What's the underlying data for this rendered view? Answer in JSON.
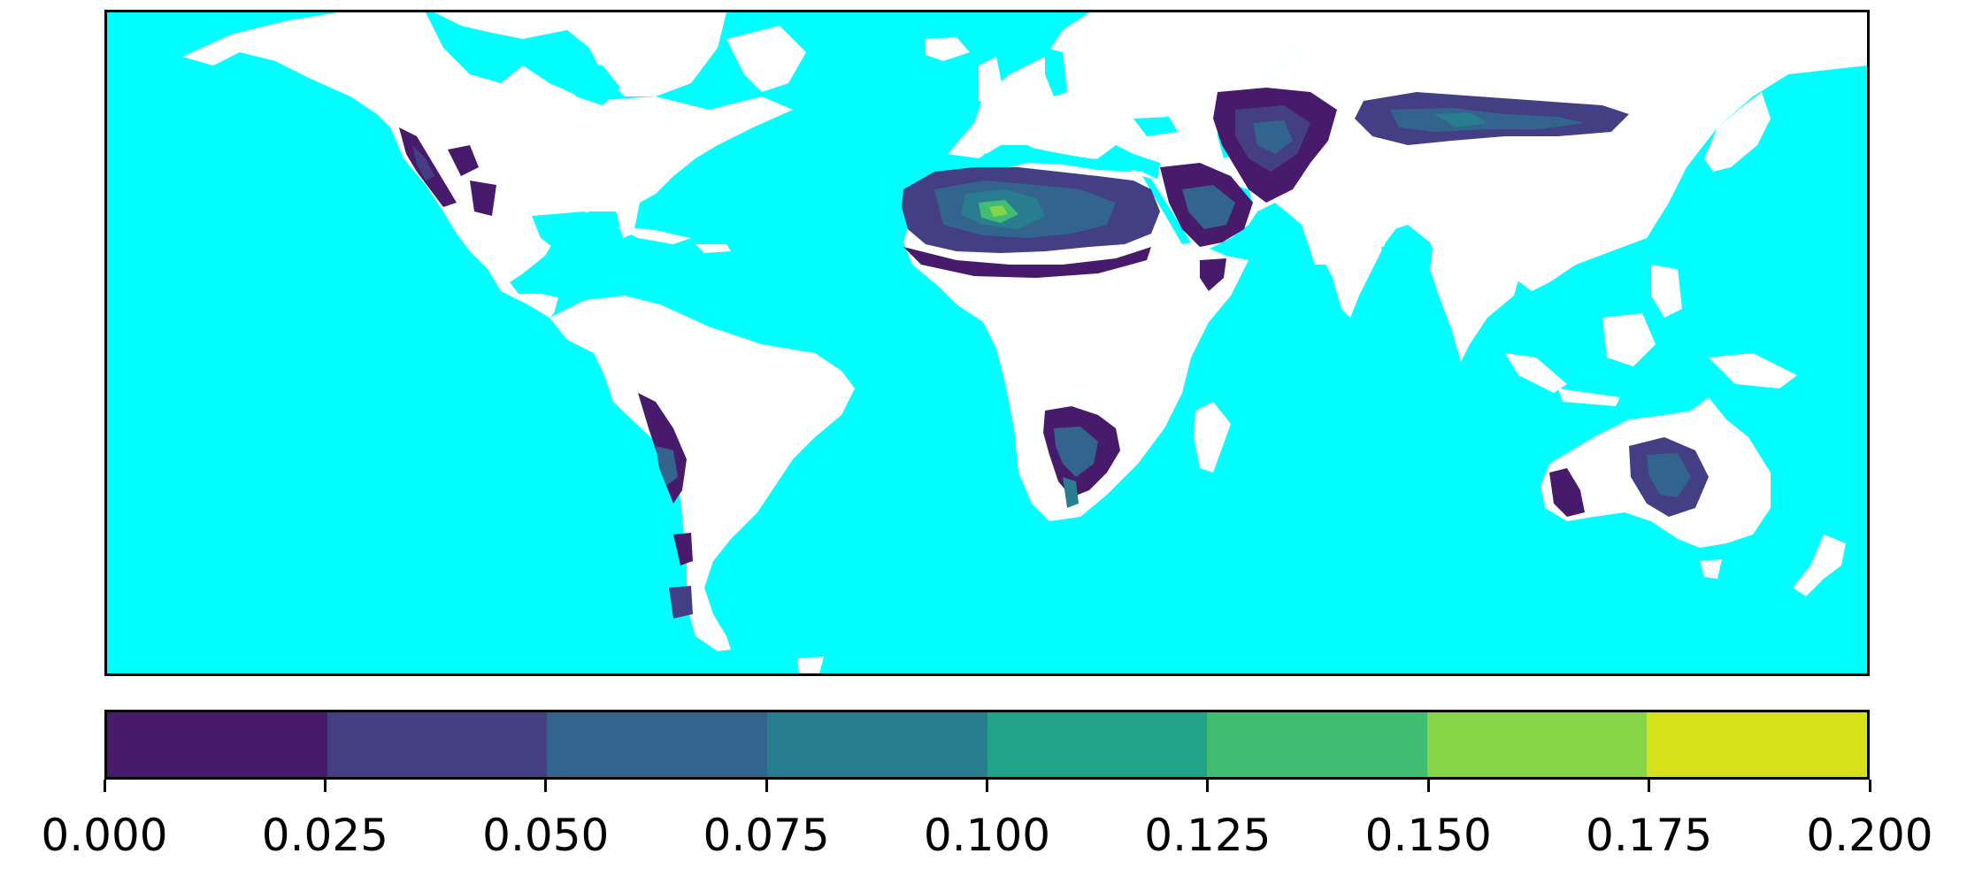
{
  "map": {
    "ocean_color": "#00ffff",
    "land_color": "#ffffff",
    "projection": "equirectangular (plate carree), world extent",
    "regions_with_values": [
      {
        "name": "Southwestern North America",
        "level": "0.000-0.050"
      },
      {
        "name": "Sahara",
        "level": "0.025-0.175",
        "peak": "0.150-0.175"
      },
      {
        "name": "Arabian Peninsula",
        "level": "0.000-0.075"
      },
      {
        "name": "Iran / Afghanistan / Central Asia",
        "level": "0.000-0.075"
      },
      {
        "name": "Taklamakan / Gobi",
        "level": "0.025-0.100"
      },
      {
        "name": "Horn of Africa",
        "level": "0.000-0.050"
      },
      {
        "name": "Namib / Kalahari",
        "level": "0.000-0.100"
      },
      {
        "name": "Atacama / western South America",
        "level": "0.000-0.075"
      },
      {
        "name": "Patagonia",
        "level": "0.000-0.050"
      },
      {
        "name": "Western Australia",
        "level": "0.000-0.025"
      },
      {
        "name": "Central Australia",
        "level": "0.000-0.075"
      }
    ]
  },
  "colorbar": {
    "colormap": "viridis (8 discrete bins)",
    "range": [
      0.0,
      0.2
    ],
    "bins": [
      {
        "from": 0.0,
        "to": 0.025,
        "color": "#481a6c"
      },
      {
        "from": 0.025,
        "to": 0.05,
        "color": "#443f85"
      },
      {
        "from": 0.05,
        "to": 0.075,
        "color": "#33648d"
      },
      {
        "from": 0.075,
        "to": 0.1,
        "color": "#287d8e"
      },
      {
        "from": 0.1,
        "to": 0.125,
        "color": "#20a386"
      },
      {
        "from": 0.125,
        "to": 0.15,
        "color": "#40bd72"
      },
      {
        "from": 0.15,
        "to": 0.175,
        "color": "#86d549"
      },
      {
        "from": 0.175,
        "to": 0.2,
        "color": "#d5e21a"
      }
    ],
    "tick_labels": [
      "0.000",
      "0.025",
      "0.050",
      "0.075",
      "0.100",
      "0.125",
      "0.150",
      "0.175",
      "0.200"
    ]
  }
}
